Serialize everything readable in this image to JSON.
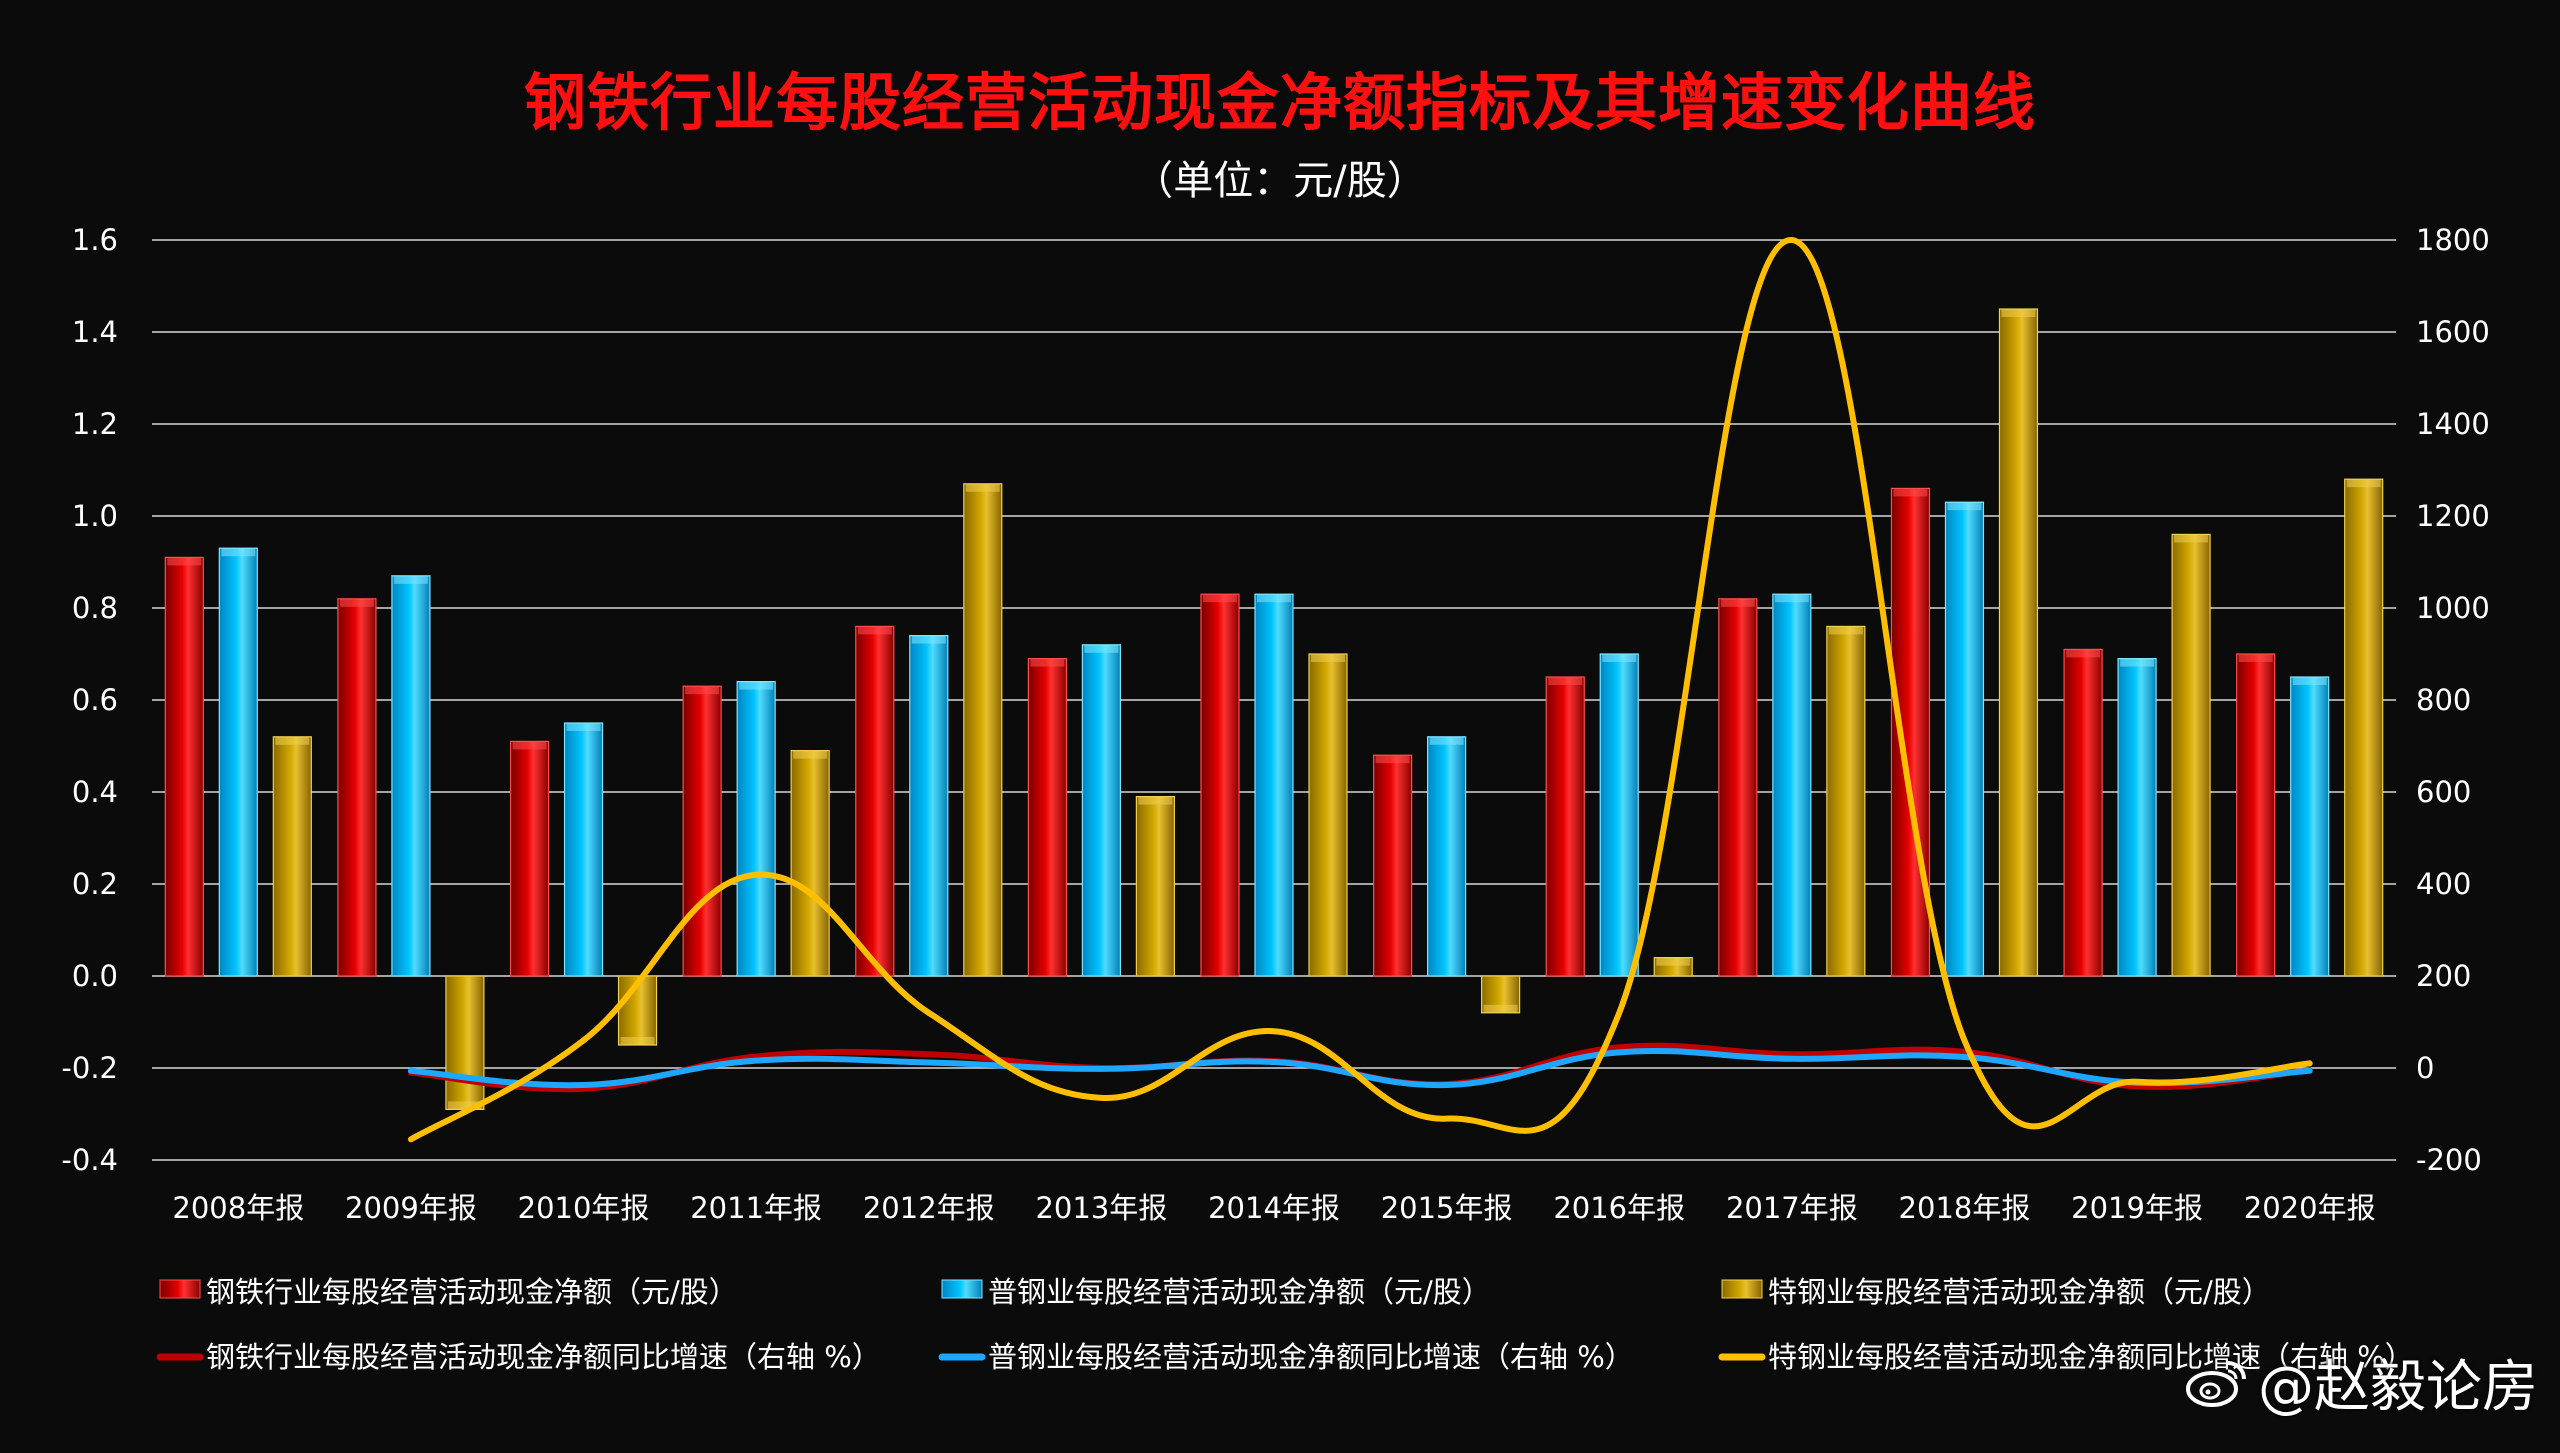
{
  "colors": {
    "steel": "#cc0000",
    "common": "#00bfff",
    "special": "#c9a100",
    "line_steel": "#c00000",
    "line_common": "#1ea7ff",
    "line_special": "#ffbf00",
    "grid": "#d8d8d8"
  },
  "watermark": {
    "text": "@赵毅论房",
    "icon": "weibo-logo"
  },
  "chart_data": {
    "type": "bar",
    "title": "钢铁行业每股经营活动现金净额指标及其增速变化曲线",
    "subtitle": "（单位：元/股）",
    "categories": [
      "2008年报",
      "2009年报",
      "2010年报",
      "2011年报",
      "2012年报",
      "2013年报",
      "2014年报",
      "2015年报",
      "2016年报",
      "2017年报",
      "2018年报",
      "2019年报",
      "2020年报"
    ],
    "y_left": {
      "min": -0.4,
      "max": 1.6,
      "ticks": [
        "-0.4",
        "-0.2",
        "0.0",
        "0.2",
        "0.4",
        "0.6",
        "0.8",
        "1.0",
        "1.2",
        "1.4",
        "1.6"
      ]
    },
    "y_right": {
      "min": -200,
      "max": 1800,
      "ticks": [
        "-200",
        "0",
        "200",
        "400",
        "600",
        "800",
        "1000",
        "1200",
        "1400",
        "1600",
        "1800"
      ]
    },
    "grid": true,
    "legend_position": "bottom",
    "bar_series": [
      {
        "name": "钢铁行业每股经营活动现金净额（元/股）",
        "color_key": "steel",
        "values": [
          0.91,
          0.82,
          0.51,
          0.63,
          0.76,
          0.69,
          0.83,
          0.48,
          0.65,
          0.82,
          1.06,
          0.71,
          0.7
        ]
      },
      {
        "name": "普钢业每股经营活动现金净额（元/股）",
        "color_key": "common",
        "values": [
          0.93,
          0.87,
          0.55,
          0.64,
          0.74,
          0.72,
          0.83,
          0.52,
          0.7,
          0.83,
          1.03,
          0.69,
          0.65
        ]
      },
      {
        "name": "特钢业每股经营活动现金净额（元/股）",
        "color_key": "special",
        "values": [
          0.52,
          -0.29,
          -0.15,
          0.49,
          1.07,
          0.39,
          0.7,
          -0.08,
          0.04,
          0.76,
          1.45,
          0.96,
          1.08
        ]
      }
    ],
    "line_series": [
      {
        "name": "钢铁行业每股经营活动现金净额同比增速（右轴  %）",
        "color_key": "line_steel",
        "axis": "right",
        "x": [
          "2009年报",
          "2010年报",
          "2011年报",
          "2012年报",
          "2013年报",
          "2014年报",
          "2015年报",
          "2016年报",
          "2017年报",
          "2018年报",
          "2019年报",
          "2020年报"
        ],
        "values": [
          -10,
          -45,
          25,
          30,
          0,
          15,
          -35,
          45,
          30,
          35,
          -40,
          -5
        ]
      },
      {
        "name": "普钢业每股经营活动现金净额同比增速（右轴  %）",
        "color_key": "line_common",
        "axis": "right",
        "x": [
          "2009年报",
          "2010年报",
          "2011年报",
          "2012年报",
          "2013年报",
          "2014年报",
          "2015年报",
          "2016年报",
          "2017年报",
          "2018年报",
          "2019年报",
          "2020年报"
        ],
        "values": [
          -6,
          -37,
          16,
          12,
          -2,
          13,
          -37,
          34,
          20,
          24,
          -32,
          -6
        ]
      },
      {
        "name": "特钢业每股经营活动现金净额同比增速（右轴  %）",
        "color_key": "line_special",
        "axis": "right",
        "x": [
          "2009年报",
          "2010年报",
          "2011年报",
          "2012年报",
          "2013年报",
          "2014年报",
          "2015年报",
          "2016年报",
          "2017年报",
          "2018年报",
          "2019年报",
          "2020年报"
        ],
        "values": [
          -155,
          60,
          420,
          120,
          -65,
          80,
          -110,
          120,
          1800,
          60,
          -30,
          10
        ]
      }
    ]
  }
}
